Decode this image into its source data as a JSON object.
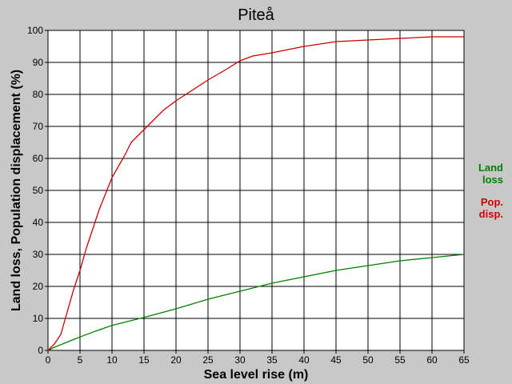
{
  "chart_data": {
    "type": "line",
    "title": "Piteå",
    "xlabel": "Sea level rise (m)",
    "ylabel": "Land loss, Population displacement (%)",
    "xlim": [
      0,
      65
    ],
    "ylim": [
      0,
      100
    ],
    "xticks": [
      0,
      5,
      10,
      15,
      20,
      25,
      30,
      35,
      40,
      45,
      50,
      55,
      60,
      65
    ],
    "yticks": [
      0,
      10,
      20,
      30,
      40,
      50,
      60,
      70,
      80,
      90,
      100
    ],
    "grid": true,
    "legend_position": "right",
    "series": [
      {
        "name": "Land loss",
        "legend_lines": [
          "Land",
          "loss"
        ],
        "color": "#008000",
        "x": [
          0,
          1,
          2,
          3,
          4,
          5,
          7,
          10,
          15,
          20,
          25,
          30,
          35,
          40,
          45,
          50,
          55,
          60,
          65
        ],
        "y": [
          0,
          1,
          1.8,
          2.6,
          3.4,
          4.2,
          5.7,
          7.8,
          10.3,
          13,
          16,
          18.5,
          21,
          23,
          25,
          26.5,
          28,
          29,
          30
        ]
      },
      {
        "name": "Pop. disp.",
        "legend_lines": [
          "Pop.",
          "disp."
        ],
        "color": "#cc0000",
        "x": [
          0,
          1,
          2,
          3,
          4,
          5,
          6,
          7,
          8,
          9,
          10,
          12,
          13,
          15,
          18,
          20,
          25,
          28,
          30,
          32,
          35,
          40,
          45,
          50,
          55,
          60,
          65
        ],
        "y": [
          0,
          2,
          5,
          12,
          19,
          25,
          32,
          38,
          44,
          49,
          54,
          61,
          65,
          69,
          75,
          78,
          84.5,
          88,
          90.5,
          92,
          93,
          95,
          96.5,
          97,
          97.5,
          98,
          98
        ]
      }
    ]
  }
}
